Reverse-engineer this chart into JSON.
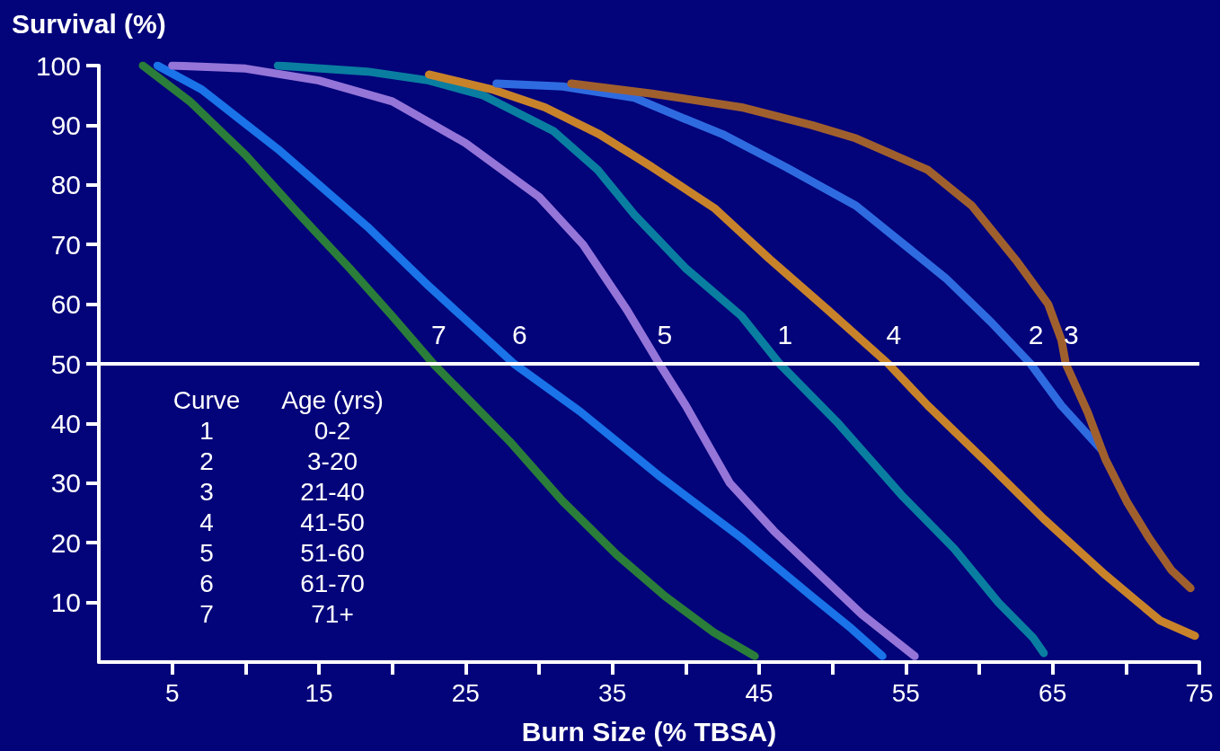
{
  "chart_data": {
    "type": "line",
    "title": "Survival (%)",
    "xlabel": "Burn Size (% TBSA)",
    "xlim": [
      0,
      75
    ],
    "xticks": [
      5,
      {
        "value": 10,
        "label": null
      },
      15,
      {
        "value": 20,
        "label": null
      },
      25,
      {
        "value": 30,
        "label": null
      },
      35,
      {
        "value": 40,
        "label": null
      },
      45,
      {
        "value": 50,
        "label": null
      },
      55,
      {
        "value": 60,
        "label": null
      },
      65,
      {
        "value": 70,
        "label": null
      },
      75
    ],
    "ylim": [
      0,
      100
    ],
    "yticks": [
      10,
      20,
      30,
      40,
      50,
      60,
      70,
      80,
      90,
      100
    ],
    "grid": false,
    "legend": false,
    "line_style": "solid",
    "ref_lines": [
      {
        "axis": "y",
        "value": 50,
        "label": null,
        "color": "#ffffff"
      }
    ],
    "annotations": [
      "Curve",
      "Age (yrs)",
      "1",
      "0-2",
      "2",
      "3-20",
      "3",
      "21-40",
      "4",
      "41-50",
      "5",
      "51-60",
      "6",
      "61-70",
      "7",
      "71+"
    ],
    "series": [
      {
        "name": "7",
        "color": "#2b7d3a",
        "x": [
          3,
          6.2,
          10,
          13.3,
          17.1,
          20,
          22.8,
          28,
          31.6,
          35.3,
          38.6,
          41.9,
          44.7
        ],
        "values": [
          100,
          94,
          85,
          76,
          66,
          58,
          50,
          37,
          27,
          18,
          11,
          5,
          1
        ]
      },
      {
        "name": "6",
        "color": "#1a73e8",
        "x": [
          4,
          7,
          12.2,
          18.3,
          22.5,
          28.3,
          32.8,
          38.3,
          43.7,
          48.6,
          51.3,
          53.4
        ],
        "values": [
          100,
          96,
          86,
          73,
          63,
          50,
          42,
          31,
          21,
          11,
          5.6,
          1
        ]
      },
      {
        "name": "5",
        "color": "#9575d8",
        "x": [
          5,
          10,
          15,
          20,
          25,
          30,
          33,
          36,
          38.2,
          40,
          43,
          46,
          49,
          52,
          55.6
        ],
        "values": [
          100,
          99.5,
          97.5,
          94,
          87,
          78,
          70,
          59,
          50,
          43,
          30,
          22,
          15,
          8,
          1
        ]
      },
      {
        "name": "1",
        "color": "#0a7ea0",
        "x": [
          12.2,
          18.3,
          22.5,
          26.2,
          31,
          34,
          36.5,
          40,
          43.8,
          46.4,
          50.4,
          54.7,
          58.3,
          61.3,
          63.7,
          64.4
        ],
        "values": [
          100,
          99,
          97.5,
          95,
          89,
          82.5,
          75,
          66,
          58,
          50,
          40,
          28,
          19,
          10,
          4,
          1.5
        ]
      },
      {
        "name": "4",
        "color": "#c8832a",
        "x": [
          22.5,
          26.8,
          30.4,
          34.1,
          37.7,
          42,
          45.7,
          49.7,
          53.8,
          56.5,
          60.7,
          64.4,
          68.6,
          72.3,
          74.7
        ],
        "values": [
          98.5,
          96,
          93,
          88.5,
          83,
          76,
          67.6,
          59,
          50,
          43,
          33,
          24,
          14.6,
          7,
          4.4
        ]
      },
      {
        "name": "2",
        "color": "#2f6be0",
        "x": [
          27.1,
          31.6,
          36.5,
          39.5,
          42.5,
          46.8,
          51.6,
          57.7,
          60.8,
          63.5,
          65.6,
          68.3
        ],
        "values": [
          97,
          96.5,
          94.6,
          91.5,
          88.5,
          83,
          76.5,
          64.4,
          57,
          50,
          43,
          35.7
        ]
      },
      {
        "name": "3",
        "color": "#a0602e",
        "x": [
          32.2,
          37.7,
          43.8,
          48.6,
          51.6,
          56.5,
          59.5,
          62.5,
          64.7,
          65.6,
          65.9,
          67.4,
          68.6,
          70.1,
          71.6,
          73.1,
          74.4
        ],
        "values": [
          97,
          95.3,
          93,
          90,
          87.8,
          82.5,
          76.5,
          67.4,
          60,
          54,
          50,
          41.8,
          34,
          26.7,
          20.7,
          15.4,
          12.4
        ]
      }
    ]
  }
}
